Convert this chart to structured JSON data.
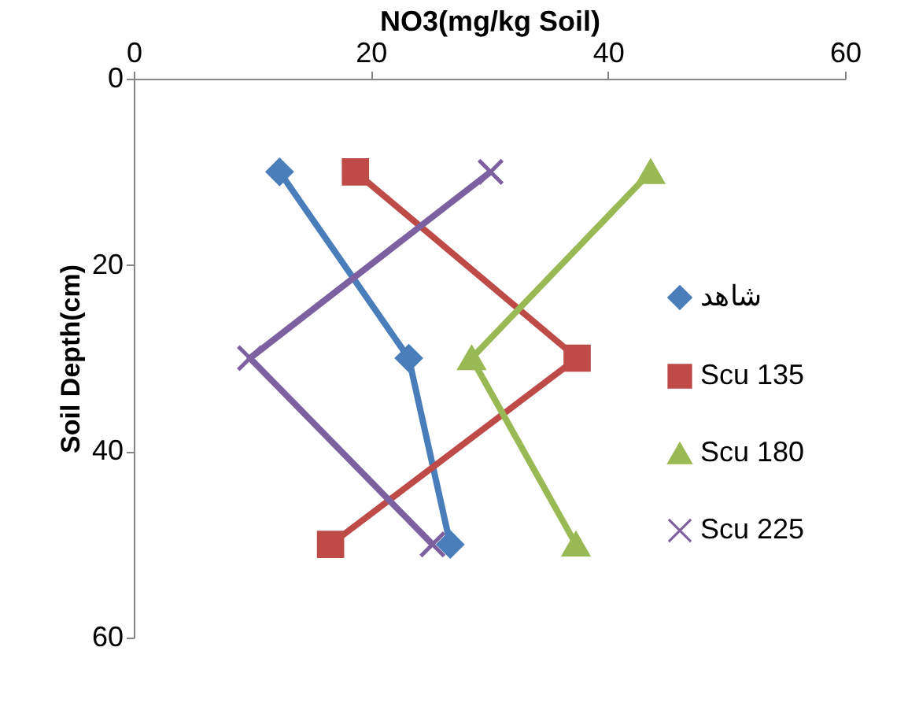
{
  "chart_data": {
    "type": "line",
    "xlabel": "NO3(mg/kg Soil)",
    "ylabel": "Soil Depth(cm)",
    "xlim": [
      0,
      60
    ],
    "xticks": [
      0,
      20,
      40,
      60
    ],
    "ylim": [
      60,
      0
    ],
    "yticks": [
      0,
      20,
      40,
      60
    ],
    "grid": false,
    "legend": "right",
    "line_style": "solid",
    "series": [
      {
        "name": "شاهد",
        "color": "#4a7ebb",
        "marker": "diamond",
        "x": [
          12.3,
          23.2,
          26.7
        ],
        "values": [
          10,
          30,
          50
        ]
      },
      {
        "name": "Scu 135",
        "color": "#be4b48",
        "marker": "square",
        "x": [
          18.7,
          37.4,
          16.6
        ],
        "values": [
          10,
          30,
          50
        ]
      },
      {
        "name": "Scu 180",
        "color": "#98b954",
        "marker": "triangle",
        "x": [
          43.6,
          28.5,
          37.3
        ],
        "values": [
          10,
          30,
          50
        ]
      },
      {
        "name": "Scu 225",
        "color": "#7d60a0",
        "marker": "cross",
        "x": [
          30.1,
          9.8,
          25.2
        ],
        "values": [
          10,
          30,
          50
        ]
      }
    ]
  }
}
